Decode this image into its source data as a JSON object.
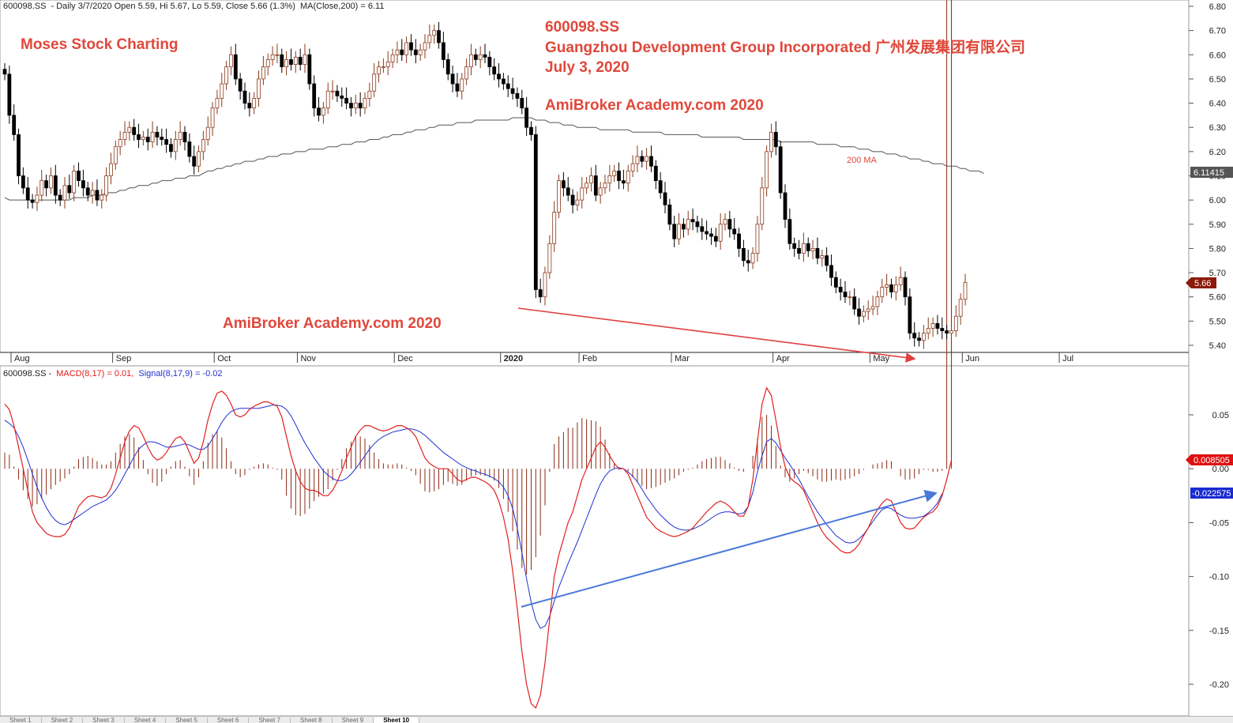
{
  "price_header": {
    "symbol": "600098.SS",
    "info": "- Daily 3/7/2020 Open 5.59, Hi 5.67, Lo 5.59, Close 5.66 (1.3%)",
    "ma_info": "MA(Close,200) = 6.11"
  },
  "macd_header": {
    "symbol": "600098.SS -",
    "macd_info": "MACD(8,17) = 0.01,",
    "signal_info": "Signal(8,17,9) = -0.02"
  },
  "annotations": {
    "brand": "Moses Stock Charting",
    "ticker": "600098.SS",
    "company": "Guangzhou Development Group Incorporated 广州发展集团有限公司",
    "date": "July 3, 2020",
    "watermark_top": "AmiBroker Academy.com  2020",
    "watermark_bottom": "AmiBroker Academy.com  2020",
    "ma_label": "200 MA"
  },
  "value_tags": {
    "ma_value": "6.11415",
    "close_value": "5.66",
    "macd_value": "0.008505",
    "signal_value": "-0.022575"
  },
  "colors": {
    "macd_line": "#e02020",
    "signal_line": "#2030d0",
    "histogram": "#8b2a14",
    "ma_line": "#555555",
    "price_trend": "#e04040",
    "macd_trend": "#4a78d8",
    "annotation": "#e0483b"
  },
  "tabs": [
    "Sheet 1",
    "Sheet 2",
    "Sheet 3",
    "Sheet 4",
    "Sheet 5",
    "Sheet 6",
    "Sheet 7",
    "Sheet 8",
    "Sheet 9",
    "Sheet 10"
  ],
  "active_tab": 9,
  "chart_data": [
    {
      "type": "candlestick",
      "title": "600098.SS - Daily",
      "ylim": [
        5.35,
        6.81
      ],
      "y_ticks": [
        "6.80",
        "6.70",
        "6.60",
        "6.50",
        "6.40",
        "6.30",
        "6.20",
        "6.10",
        "6.00",
        "5.90",
        "5.80",
        "5.70",
        "5.60",
        "5.50",
        "5.40"
      ],
      "x_month_labels": [
        "Aug",
        "Sep",
        "Oct",
        "Nov",
        "Dec",
        "2020",
        "Feb",
        "Mar",
        "Apr",
        "May",
        "Jun",
        "Jul"
      ],
      "x_month_start_index": [
        0,
        22,
        44,
        62,
        83,
        106,
        123,
        143,
        165,
        186,
        206,
        227
      ],
      "close": [
        6.52,
        6.35,
        6.27,
        6.1,
        6.05,
        6.0,
        5.99,
        6.02,
        6.08,
        6.05,
        6.1,
        6.02,
        6.0,
        6.06,
        6.03,
        6.12,
        6.08,
        6.05,
        6.02,
        6.04,
        6.0,
        6.02,
        6.1,
        6.15,
        6.22,
        6.25,
        6.28,
        6.3,
        6.27,
        6.25,
        6.26,
        6.24,
        6.28,
        6.26,
        6.25,
        6.23,
        6.2,
        6.25,
        6.28,
        6.24,
        6.18,
        6.14,
        6.2,
        6.25,
        6.3,
        6.38,
        6.42,
        6.48,
        6.55,
        6.6,
        6.5,
        6.45,
        6.4,
        6.38,
        6.42,
        6.5,
        6.55,
        6.58,
        6.6,
        6.6,
        6.55,
        6.58,
        6.56,
        6.59,
        6.56,
        6.6,
        6.48,
        6.38,
        6.35,
        6.38,
        6.45,
        6.45,
        6.43,
        6.42,
        6.4,
        6.38,
        6.4,
        6.38,
        6.42,
        6.45,
        6.52,
        6.55,
        6.55,
        6.57,
        6.6,
        6.62,
        6.6,
        6.65,
        6.62,
        6.6,
        6.62,
        6.65,
        6.68,
        6.7,
        6.65,
        6.58,
        6.52,
        6.48,
        6.45,
        6.5,
        6.55,
        6.6,
        6.58,
        6.6,
        6.59,
        6.55,
        6.52,
        6.5,
        6.48,
        6.46,
        6.44,
        6.42,
        6.38,
        6.3,
        6.27,
        5.63,
        5.6,
        5.7,
        5.82,
        5.95,
        6.08,
        6.05,
        6.02,
        5.98,
        6.0,
        6.05,
        6.07,
        6.1,
        6.02,
        6.05,
        6.07,
        6.1,
        6.12,
        6.08,
        6.07,
        6.12,
        6.15,
        6.18,
        6.16,
        6.18,
        6.14,
        6.08,
        6.03,
        5.98,
        5.9,
        5.84,
        5.9,
        5.88,
        5.92,
        5.91,
        5.89,
        5.87,
        5.86,
        5.85,
        5.83,
        5.9,
        5.92,
        5.88,
        5.86,
        5.8,
        5.75,
        5.74,
        5.78,
        5.9,
        6.05,
        6.2,
        6.28,
        6.22,
        6.03,
        5.92,
        5.82,
        5.8,
        5.78,
        5.82,
        5.79,
        5.8,
        5.76,
        5.77,
        5.73,
        5.68,
        5.64,
        5.62,
        5.6,
        5.6,
        5.55,
        5.52,
        5.54,
        5.55,
        5.56,
        5.6,
        5.64,
        5.65,
        5.62,
        5.65,
        5.68,
        5.6,
        5.45,
        5.43,
        5.42,
        5.45,
        5.47,
        5.49,
        5.47,
        5.46,
        5.45,
        5.46,
        5.52,
        5.59,
        5.66
      ],
      "ma200": [
        6.01,
        6.0,
        6.0,
        6.0,
        6.0,
        6.0,
        6.0,
        6.0,
        6.0,
        6.0,
        6.0,
        6.0,
        6.0,
        6.0,
        6.0,
        6.01,
        6.01,
        6.01,
        6.01,
        6.02,
        6.02,
        6.02,
        6.03,
        6.03,
        6.03,
        6.04,
        6.04,
        6.05,
        6.05,
        6.06,
        6.06,
        6.06,
        6.07,
        6.07,
        6.08,
        6.08,
        6.08,
        6.09,
        6.09,
        6.09,
        6.1,
        6.1,
        6.1,
        6.11,
        6.12,
        6.12,
        6.13,
        6.13,
        6.14,
        6.14,
        6.15,
        6.15,
        6.16,
        6.16,
        6.16,
        6.17,
        6.17,
        6.18,
        6.18,
        6.18,
        6.19,
        6.19,
        6.19,
        6.2,
        6.2,
        6.2,
        6.21,
        6.21,
        6.21,
        6.21,
        6.22,
        6.22,
        6.22,
        6.23,
        6.23,
        6.23,
        6.24,
        6.24,
        6.24,
        6.25,
        6.25,
        6.25,
        6.26,
        6.26,
        6.27,
        6.27,
        6.27,
        6.28,
        6.28,
        6.29,
        6.29,
        6.29,
        6.3,
        6.3,
        6.31,
        6.31,
        6.31,
        6.31,
        6.32,
        6.32,
        6.32,
        6.32,
        6.33,
        6.33,
        6.33,
        6.33,
        6.33,
        6.33,
        6.33,
        6.33,
        6.34,
        6.34,
        6.34,
        6.34,
        6.34,
        6.33,
        6.33,
        6.33,
        6.32,
        6.32,
        6.32,
        6.31,
        6.31,
        6.31,
        6.3,
        6.3,
        6.3,
        6.3,
        6.3,
        6.29,
        6.29,
        6.29,
        6.29,
        6.29,
        6.29,
        6.29,
        6.28,
        6.28,
        6.28,
        6.28,
        6.28,
        6.28,
        6.28,
        6.27,
        6.27,
        6.27,
        6.27,
        6.27,
        6.27,
        6.27,
        6.27,
        6.26,
        6.26,
        6.26,
        6.26,
        6.26,
        6.26,
        6.26,
        6.26,
        6.26,
        6.25,
        6.25,
        6.25,
        6.25,
        6.25,
        6.25,
        6.25,
        6.25,
        6.24,
        6.24,
        6.24,
        6.24,
        6.24,
        6.24,
        6.24,
        6.24,
        6.23,
        6.23,
        6.23,
        6.23,
        6.23,
        6.22,
        6.22,
        6.22,
        6.22,
        6.21,
        6.21,
        6.21,
        6.2,
        6.2,
        6.2,
        6.19,
        6.19,
        6.19,
        6.18,
        6.18,
        6.17,
        6.17,
        6.17,
        6.16,
        6.16,
        6.15,
        6.15,
        6.15,
        6.14,
        6.14,
        6.14,
        6.13,
        6.13,
        6.12,
        6.12,
        6.12,
        6.11
      ]
    },
    {
      "type": "line",
      "title": "MACD(8,17) and Signal(8,17,9)",
      "ylim": [
        -0.22,
        0.075
      ],
      "y_ticks": [
        "0.05",
        "0.00",
        "-0.05",
        "-0.10",
        "-0.15",
        "-0.20"
      ],
      "series": [
        {
          "name": "MACD(8,17)",
          "values": [
            0.06,
            0.055,
            0.04,
            0.02,
            0.0,
            -0.02,
            -0.04,
            -0.05,
            -0.055,
            -0.06,
            -0.062,
            -0.063,
            -0.063,
            -0.061,
            -0.055,
            -0.045,
            -0.035,
            -0.03,
            -0.026,
            -0.025,
            -0.026,
            -0.027,
            -0.025,
            -0.018,
            -0.005,
            0.01,
            0.025,
            0.035,
            0.04,
            0.038,
            0.03,
            0.02,
            0.012,
            0.008,
            0.01,
            0.015,
            0.022,
            0.028,
            0.03,
            0.025,
            0.015,
            0.005,
            0.01,
            0.025,
            0.045,
            0.06,
            0.07,
            0.072,
            0.068,
            0.06,
            0.05,
            0.048,
            0.05,
            0.055,
            0.058,
            0.06,
            0.062,
            0.062,
            0.06,
            0.058,
            0.048,
            0.03,
            0.012,
            -0.002,
            -0.012,
            -0.018,
            -0.02,
            -0.02,
            -0.022,
            -0.025,
            -0.025,
            -0.02,
            -0.012,
            -0.002,
            0.01,
            0.02,
            0.03,
            0.036,
            0.04,
            0.04,
            0.038,
            0.036,
            0.035,
            0.036,
            0.038,
            0.04,
            0.04,
            0.038,
            0.035,
            0.03,
            0.02,
            0.01,
            0.005,
            0.002,
            0.0,
            0.0,
            0.0,
            -0.005,
            -0.01,
            -0.012,
            -0.01,
            -0.008,
            -0.008,
            -0.01,
            -0.012,
            -0.015,
            -0.02,
            -0.03,
            -0.045,
            -0.065,
            -0.095,
            -0.13,
            -0.17,
            -0.2,
            -0.218,
            -0.222,
            -0.21,
            -0.18,
            -0.14,
            -0.1,
            -0.08,
            -0.065,
            -0.05,
            -0.04,
            -0.025,
            -0.01,
            0.0,
            0.01,
            0.02,
            0.025,
            0.02,
            0.012,
            0.005,
            0.0,
            0.0,
            -0.005,
            -0.015,
            -0.025,
            -0.035,
            -0.045,
            -0.05,
            -0.055,
            -0.058,
            -0.06,
            -0.062,
            -0.063,
            -0.062,
            -0.06,
            -0.058,
            -0.055,
            -0.05,
            -0.045,
            -0.04,
            -0.036,
            -0.032,
            -0.03,
            -0.032,
            -0.035,
            -0.04,
            -0.044,
            -0.044,
            -0.035,
            -0.01,
            0.025,
            0.06,
            0.075,
            0.068,
            0.045,
            0.02,
            0.002,
            -0.008,
            -0.012,
            -0.015,
            -0.02,
            -0.03,
            -0.04,
            -0.05,
            -0.058,
            -0.064,
            -0.068,
            -0.072,
            -0.076,
            -0.078,
            -0.078,
            -0.075,
            -0.07,
            -0.062,
            -0.055,
            -0.045,
            -0.038,
            -0.032,
            -0.028,
            -0.03,
            -0.04,
            -0.05,
            -0.055,
            -0.056,
            -0.055,
            -0.05,
            -0.045,
            -0.042,
            -0.04,
            -0.035,
            -0.025,
            -0.01,
            0.008
          ]
        },
        {
          "name": "Signal(8,17,9)",
          "values": [
            0.045,
            0.042,
            0.038,
            0.03,
            0.02,
            0.008,
            -0.005,
            -0.017,
            -0.027,
            -0.036,
            -0.043,
            -0.048,
            -0.051,
            -0.052,
            -0.05,
            -0.047,
            -0.044,
            -0.041,
            -0.038,
            -0.035,
            -0.033,
            -0.031,
            -0.029,
            -0.025,
            -0.02,
            -0.013,
            -0.005,
            0.003,
            0.011,
            0.018,
            0.022,
            0.025,
            0.025,
            0.024,
            0.022,
            0.02,
            0.02,
            0.021,
            0.022,
            0.023,
            0.022,
            0.02,
            0.018,
            0.018,
            0.021,
            0.028,
            0.035,
            0.043,
            0.049,
            0.053,
            0.055,
            0.056,
            0.056,
            0.056,
            0.056,
            0.056,
            0.057,
            0.058,
            0.059,
            0.059,
            0.058,
            0.055,
            0.049,
            0.041,
            0.032,
            0.024,
            0.017,
            0.01,
            0.004,
            -0.002,
            -0.006,
            -0.009,
            -0.011,
            -0.011,
            -0.009,
            -0.005,
            0.0,
            0.006,
            0.012,
            0.018,
            0.023,
            0.027,
            0.03,
            0.032,
            0.034,
            0.035,
            0.036,
            0.037,
            0.037,
            0.036,
            0.034,
            0.031,
            0.027,
            0.023,
            0.019,
            0.015,
            0.012,
            0.009,
            0.006,
            0.003,
            0.001,
            -0.001,
            -0.002,
            -0.004,
            -0.005,
            -0.007,
            -0.009,
            -0.012,
            -0.017,
            -0.025,
            -0.037,
            -0.055,
            -0.078,
            -0.102,
            -0.124,
            -0.14,
            -0.148,
            -0.146,
            -0.137,
            -0.123,
            -0.11,
            -0.099,
            -0.088,
            -0.078,
            -0.068,
            -0.057,
            -0.046,
            -0.035,
            -0.024,
            -0.014,
            -0.007,
            -0.002,
            0.0,
            0.001,
            0.0,
            -0.003,
            -0.007,
            -0.012,
            -0.019,
            -0.026,
            -0.032,
            -0.038,
            -0.043,
            -0.047,
            -0.051,
            -0.054,
            -0.056,
            -0.057,
            -0.057,
            -0.056,
            -0.054,
            -0.052,
            -0.049,
            -0.046,
            -0.043,
            -0.041,
            -0.04,
            -0.04,
            -0.041,
            -0.042,
            -0.041,
            -0.035,
            -0.022,
            -0.003,
            0.012,
            0.025,
            0.028,
            0.024,
            0.017,
            0.01,
            0.004,
            -0.003,
            -0.01,
            -0.018,
            -0.026,
            -0.033,
            -0.04,
            -0.046,
            -0.052,
            -0.057,
            -0.062,
            -0.065,
            -0.068,
            -0.069,
            -0.068,
            -0.065,
            -0.061,
            -0.055,
            -0.049,
            -0.043,
            -0.038,
            -0.036,
            -0.037,
            -0.04,
            -0.043,
            -0.045,
            -0.046,
            -0.046,
            -0.045,
            -0.044,
            -0.041,
            -0.037,
            -0.032,
            -0.023
          ]
        }
      ]
    }
  ]
}
